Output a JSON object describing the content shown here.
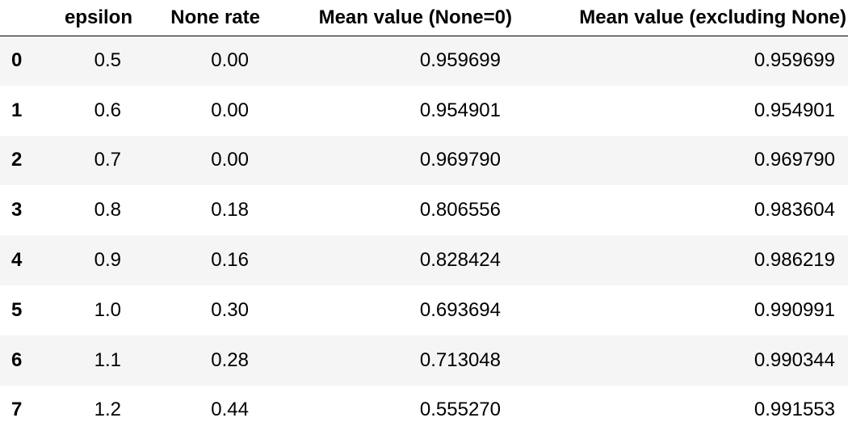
{
  "table": {
    "columns": [
      "",
      "epsilon",
      "None rate",
      "Mean value (None=0)",
      "Mean value (excluding None)"
    ],
    "rows": [
      {
        "index": "0",
        "epsilon": "0.5",
        "none_rate": "0.00",
        "mean_none0": "0.959699",
        "mean_excl": "0.959699"
      },
      {
        "index": "1",
        "epsilon": "0.6",
        "none_rate": "0.00",
        "mean_none0": "0.954901",
        "mean_excl": "0.954901"
      },
      {
        "index": "2",
        "epsilon": "0.7",
        "none_rate": "0.00",
        "mean_none0": "0.969790",
        "mean_excl": "0.969790"
      },
      {
        "index": "3",
        "epsilon": "0.8",
        "none_rate": "0.18",
        "mean_none0": "0.806556",
        "mean_excl": "0.983604"
      },
      {
        "index": "4",
        "epsilon": "0.9",
        "none_rate": "0.16",
        "mean_none0": "0.828424",
        "mean_excl": "0.986219"
      },
      {
        "index": "5",
        "epsilon": "1.0",
        "none_rate": "0.30",
        "mean_none0": "0.693694",
        "mean_excl": "0.990991"
      },
      {
        "index": "6",
        "epsilon": "1.1",
        "none_rate": "0.28",
        "mean_none0": "0.713048",
        "mean_excl": "0.990344"
      },
      {
        "index": "7",
        "epsilon": "1.2",
        "none_rate": "0.44",
        "mean_none0": "0.555270",
        "mean_excl": "0.991553"
      }
    ]
  }
}
